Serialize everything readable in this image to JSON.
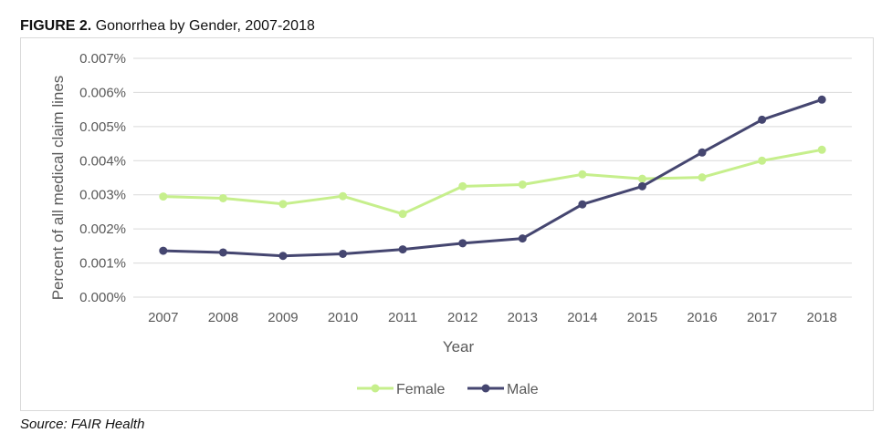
{
  "figure": {
    "label": "FIGURE 2.",
    "caption": "Gonorrhea by Gender, 2007-2018",
    "source": "Source: FAIR Health"
  },
  "chart_data": {
    "type": "line",
    "title": "FIGURE 2. Gonorrhea by Gender, 2007-2018",
    "xlabel": "Year",
    "ylabel": "Percent of all medical claim lines",
    "categories": [
      "2007",
      "2008",
      "2009",
      "2010",
      "2011",
      "2012",
      "2013",
      "2014",
      "2015",
      "2016",
      "2017",
      "2018"
    ],
    "ylim": [
      0,
      0.007
    ],
    "yticks": [
      "0.000%",
      "0.001%",
      "0.002%",
      "0.003%",
      "0.004%",
      "0.005%",
      "0.006%",
      "0.007%"
    ],
    "grid": true,
    "legend_position": "bottom",
    "series": [
      {
        "name": "Female",
        "color": "#c6ef8c",
        "values": [
          0.00295,
          0.0029,
          0.00273,
          0.00296,
          0.00244,
          0.00325,
          0.0033,
          0.0036,
          0.00347,
          0.00351,
          0.004,
          0.00432
        ]
      },
      {
        "name": "Male",
        "color": "#454670",
        "values": [
          0.00136,
          0.00131,
          0.00121,
          0.00127,
          0.0014,
          0.00158,
          0.00172,
          0.00272,
          0.00325,
          0.00424,
          0.0052,
          0.00579
        ]
      }
    ]
  }
}
